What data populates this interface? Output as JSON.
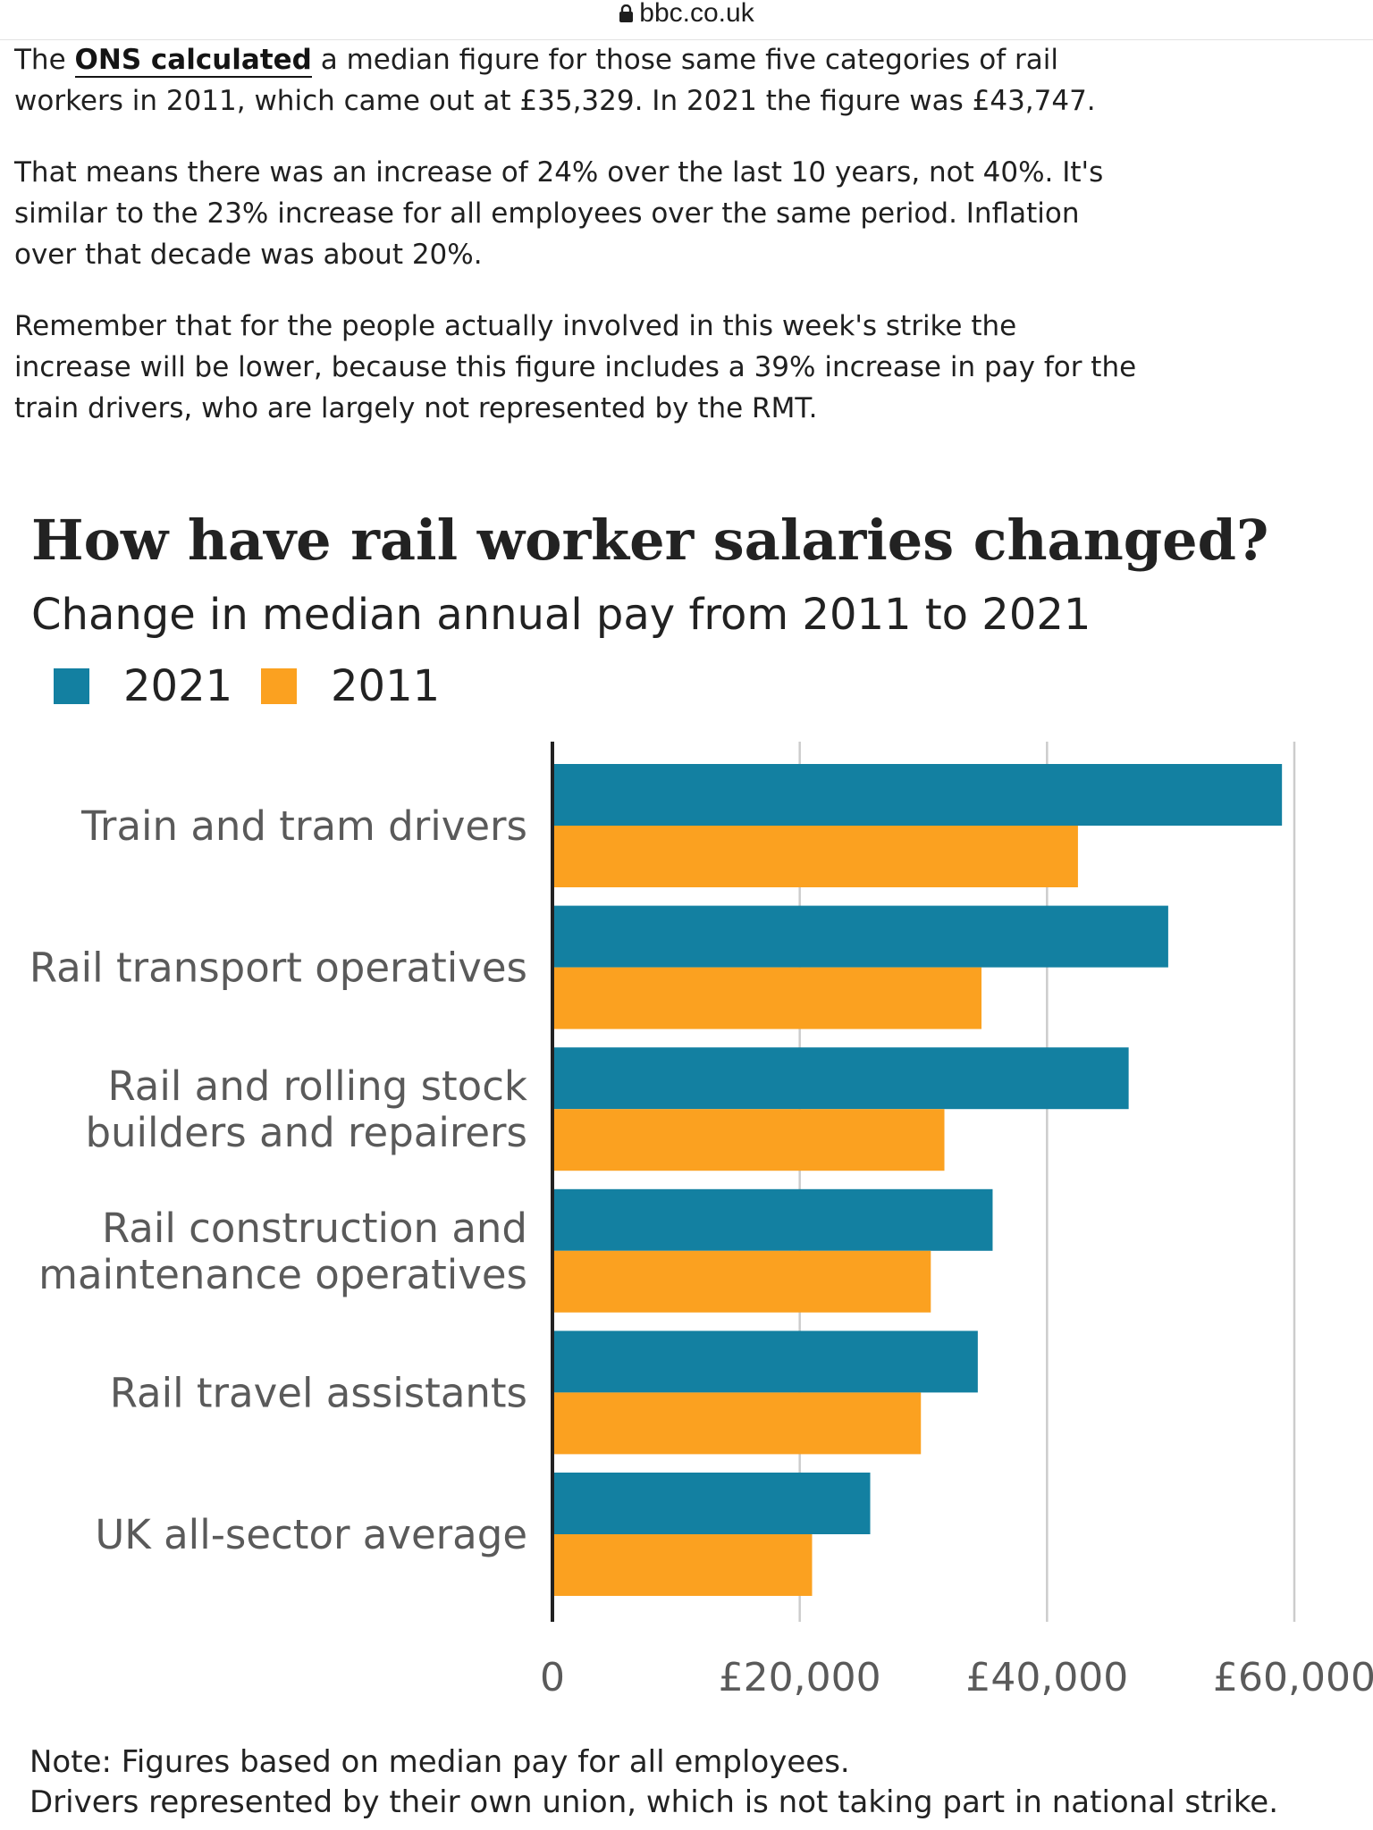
{
  "browser": {
    "domain": "bbc.co.uk"
  },
  "article": {
    "p1_pre": "The ",
    "p1_link": "ONS calculated",
    "p1_post": " a median figure for those same five categories of rail workers in 2011, which came out at £35,329. In 2021 the figure was £43,747.",
    "p2": "That means there was an increase of 24% over the last 10 years, not 40%. It's similar to the 23% increase for all employees over the same period. Inflation over that decade was about 20%.",
    "p3": "Remember that for the people actually involved in this week's strike the increase will be lower, because this figure includes a 39% increase in pay for the train drivers, who are largely not represented by the RMT."
  },
  "chart_data": {
    "type": "bar",
    "orientation": "horizontal",
    "title": "How have rail worker salaries changed?",
    "subtitle": "Change in median annual pay from 2011 to 2021",
    "categories": [
      [
        "Train and tram drivers"
      ],
      [
        "Rail transport operatives"
      ],
      [
        "Rail and rolling stock",
        "builders and repairers"
      ],
      [
        "Rail construction and",
        "maintenance operatives"
      ],
      [
        "Rail travel assistants"
      ],
      [
        "UK all-sector average"
      ]
    ],
    "series": [
      {
        "name": "2021",
        "color": "#1380a1",
        "values": [
          59000,
          49800,
          46600,
          35600,
          34400,
          25700
        ]
      },
      {
        "name": "2011",
        "color": "#fba120",
        "values": [
          42500,
          34700,
          31700,
          30600,
          29800,
          21000
        ]
      }
    ],
    "xlim": [
      0,
      60000
    ],
    "x_ticks": [
      0,
      20000,
      40000,
      60000
    ],
    "x_tick_labels": [
      "0",
      "£20,000",
      "£40,000",
      "£60,000"
    ],
    "grid": true,
    "legend_position": "top-left",
    "note_lines": [
      "Note: Figures based on median pay for all employees.",
      "Drivers represented by their own union, which is not taking part in national strike."
    ]
  }
}
